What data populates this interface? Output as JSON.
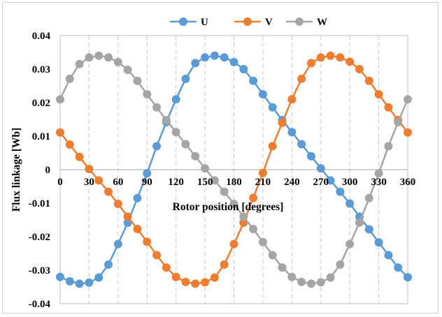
{
  "chart_data": {
    "type": "line",
    "xlabel": "Rotor position [degrees]",
    "ylabel": "Flux linkage [Wb]",
    "xlim": [
      0,
      360
    ],
    "ylim": [
      -0.04,
      0.04
    ],
    "x_ticks": [
      "0",
      "30",
      "60",
      "90",
      "120",
      "150",
      "180",
      "210",
      "240",
      "270",
      "300",
      "330",
      "360"
    ],
    "y_ticks": [
      "0.04",
      "0.03",
      "0.02",
      "0.01",
      "0",
      "-0.01",
      "-0.02",
      "-0.03",
      "-0.04"
    ],
    "grid": "vertical dashed",
    "legend_position": "top",
    "x": [
      0,
      10,
      20,
      30,
      40,
      50,
      60,
      70,
      80,
      90,
      100,
      110,
      120,
      130,
      140,
      150,
      160,
      170,
      180,
      190,
      200,
      210,
      220,
      230,
      240,
      250,
      260,
      270,
      280,
      290,
      300,
      310,
      320,
      330,
      340,
      350,
      360
    ],
    "series": [
      {
        "name": "U",
        "color": "#5b9bd5",
        "values": [
          -0.032,
          -0.0333,
          -0.034,
          -0.0337,
          -0.0322,
          -0.0283,
          -0.0222,
          -0.0158,
          -0.0085,
          -0.0011,
          0.007,
          0.0142,
          0.021,
          0.0271,
          0.0318,
          0.0335,
          0.034,
          0.0335,
          0.0321,
          0.03,
          0.0265,
          0.0225,
          0.0186,
          0.0148,
          0.0112,
          0.0076,
          0.004,
          0.0004,
          -0.0032,
          -0.0066,
          -0.0101,
          -0.014,
          -0.0178,
          -0.0217,
          -0.0255,
          -0.0292,
          -0.0321
        ]
      },
      {
        "name": "V",
        "color": "#ed7d31",
        "values": [
          0.0111,
          0.0075,
          0.0038,
          0.0002,
          -0.0032,
          -0.0066,
          -0.0102,
          -0.014,
          -0.0177,
          -0.0215,
          -0.0255,
          -0.0292,
          -0.032,
          -0.0335,
          -0.034,
          -0.0336,
          -0.0322,
          -0.0283,
          -0.0222,
          -0.0158,
          -0.0084,
          -0.001,
          0.007,
          0.014,
          0.021,
          0.0271,
          0.0318,
          0.0335,
          0.034,
          0.0335,
          0.0322,
          0.03,
          0.0265,
          0.0225,
          0.0186,
          0.0148,
          0.0111
        ]
      },
      {
        "name": "W",
        "color": "#a5a5a5",
        "values": [
          0.021,
          0.0271,
          0.0315,
          0.0335,
          0.034,
          0.0335,
          0.0321,
          0.0298,
          0.0265,
          0.0225,
          0.0186,
          0.0148,
          0.0112,
          0.0076,
          0.004,
          0.0004,
          -0.0032,
          -0.0066,
          -0.0102,
          -0.014,
          -0.0177,
          -0.0216,
          -0.0255,
          -0.0292,
          -0.032,
          -0.0335,
          -0.034,
          -0.0336,
          -0.0322,
          -0.0283,
          -0.0222,
          -0.0158,
          -0.0085,
          -0.0011,
          0.007,
          0.0142,
          0.021
        ]
      }
    ]
  }
}
